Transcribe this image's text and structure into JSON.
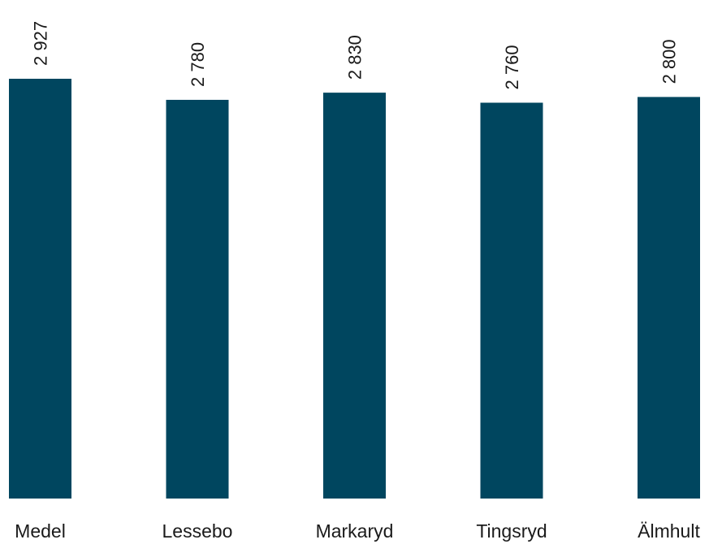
{
  "chart_data": {
    "type": "bar",
    "categories": [
      "Medel",
      "Lessebo",
      "Markaryd",
      "Tingsryd",
      "Älmhult"
    ],
    "values": [
      2927,
      2780,
      2830,
      2760,
      2800
    ],
    "value_labels": [
      "2 927",
      "2 780",
      "2 830",
      "2 760",
      "2 800"
    ],
    "title": "",
    "xlabel": "",
    "ylabel": "",
    "ylim": [
      0,
      2927
    ],
    "grid": false,
    "legend": "none",
    "colors": {
      "bar": "#00465f",
      "text": "#1a1a1a",
      "background": "#ffffff"
    }
  }
}
